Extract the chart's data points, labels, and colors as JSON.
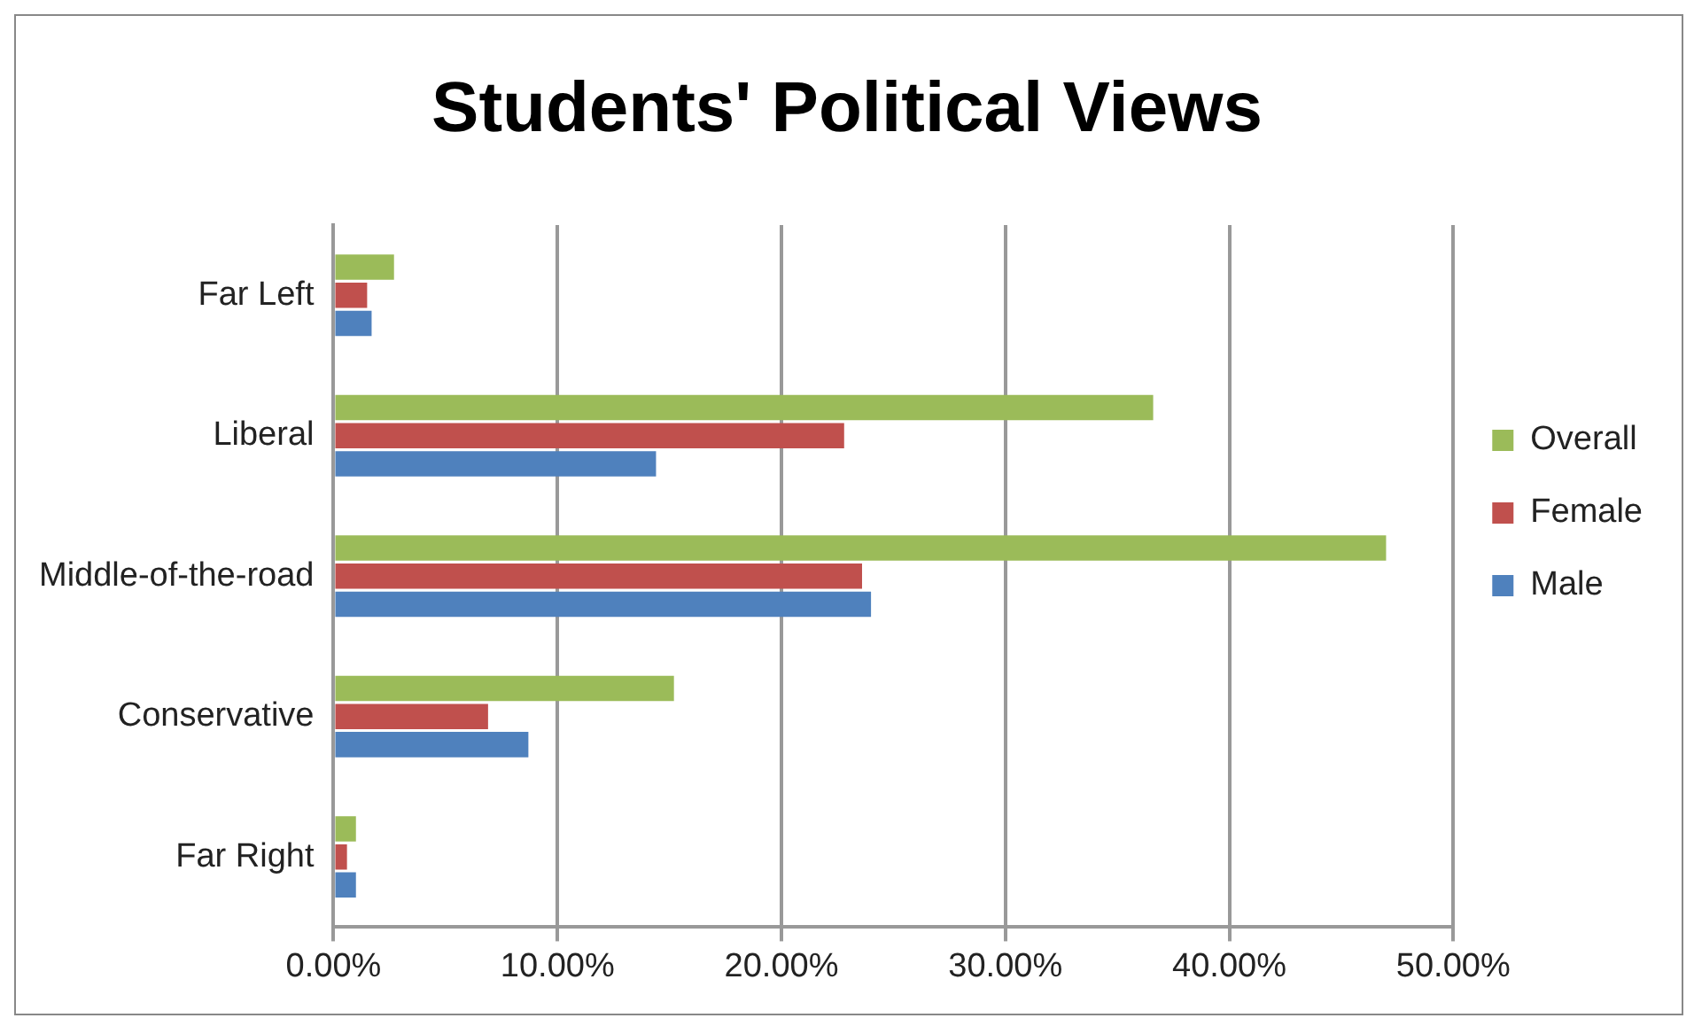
{
  "chart_data": {
    "type": "bar",
    "orientation": "horizontal",
    "title": "Students' Political Views",
    "categories": [
      "Far Left",
      "Liberal",
      "Middle-of-the-road",
      "Conservative",
      "Far Right"
    ],
    "series": [
      {
        "name": "Overall",
        "color": "#9bbb59",
        "values": [
          2.7,
          36.6,
          47.0,
          15.2,
          1.0
        ]
      },
      {
        "name": "Female",
        "color": "#c0504d",
        "values": [
          1.5,
          22.8,
          23.6,
          6.9,
          0.6
        ]
      },
      {
        "name": "Male",
        "color": "#4f81bd",
        "values": [
          1.7,
          14.4,
          24.0,
          8.7,
          1.0
        ]
      }
    ],
    "xlim": [
      0,
      50
    ],
    "xticks": [
      {
        "value": 0,
        "label": "0.00%"
      },
      {
        "value": 10,
        "label": "10.00%"
      },
      {
        "value": 20,
        "label": "20.00%"
      },
      {
        "value": 30,
        "label": "30.00%"
      },
      {
        "value": 40,
        "label": "40.00%"
      },
      {
        "value": 50,
        "label": "50.00%"
      }
    ],
    "grid": "x",
    "legend": "right"
  }
}
